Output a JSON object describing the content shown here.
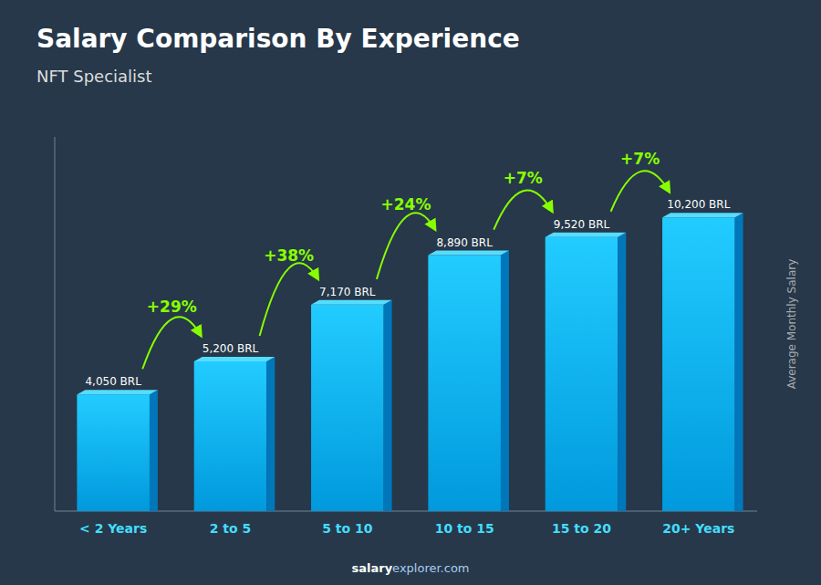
{
  "chart_data": {
    "type": "bar",
    "title": "Salary Comparison By Experience",
    "subtitle": "NFT Specialist",
    "ylabel": "Average Monthly Salary",
    "footer": [
      "salary",
      "explorer.com"
    ],
    "categories": [
      "< 2 Years",
      "2 to 5",
      "5 to 10",
      "10 to 15",
      "15 to 20",
      "20+ Years"
    ],
    "values": [
      4050,
      5200,
      7170,
      8890,
      9520,
      10200
    ],
    "data_labels": true,
    "value_labels": [
      "4,050 BRL",
      "5,200 BRL",
      "7,170 BRL",
      "8,890 BRL",
      "9,520 BRL",
      "10,200 BRL"
    ],
    "annotations": [
      "+29%",
      "+38%",
      "+24%",
      "+7%",
      "+7%"
    ],
    "color": "#22ccff",
    "ylim": [
      0,
      13000
    ],
    "tick_labels": "x",
    "grid": false
  }
}
